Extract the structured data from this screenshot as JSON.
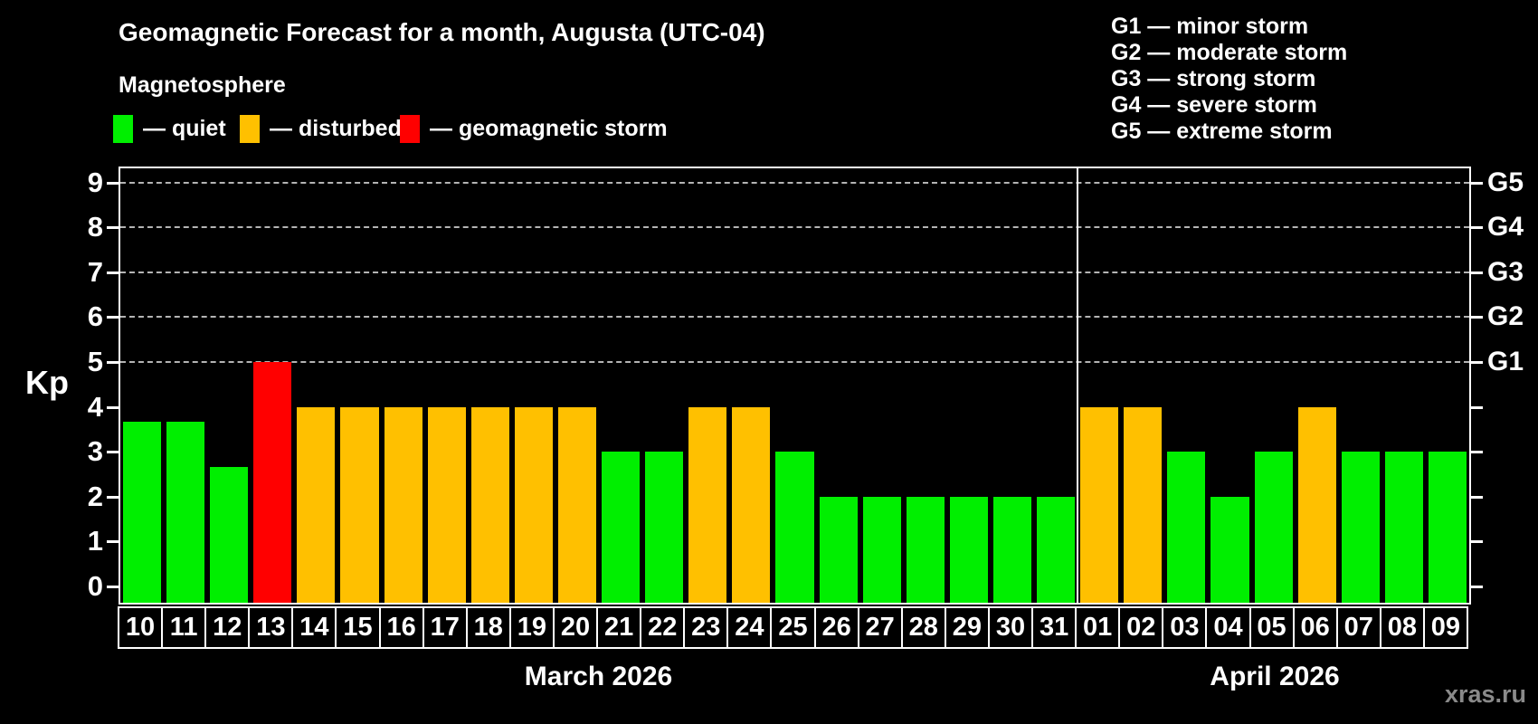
{
  "title": "Geomagnetic Forecast for a month, Augusta (UTC-04)",
  "subtitle": "Magnetosphere",
  "legend": {
    "quiet": "— quiet",
    "disturbed": "— disturbed",
    "storm": "— geomagnetic storm"
  },
  "storm_scale": [
    "G1 — minor storm",
    "G2 — moderate storm",
    "G3 — strong storm",
    "G4 — severe storm",
    "G5 — extreme storm"
  ],
  "watermark": "xras.ru",
  "colors": {
    "quiet": "#00ef00",
    "disturbed": "#ffc000",
    "storm": "#ff0000",
    "grid": "#b4b4b4",
    "frame": "#ffffff",
    "background": "#000000",
    "watermark_gray": "#8a8a8a"
  },
  "chart_data": {
    "type": "bar",
    "title": "Geomagnetic Forecast for a month, Augusta (UTC-04)",
    "ylabel": "Kp",
    "ylim": [
      0,
      9
    ],
    "y_ticks": [
      0,
      1,
      2,
      3,
      4,
      5,
      6,
      7,
      8,
      9
    ],
    "dashed_gridlines_at": [
      5,
      6,
      7,
      8,
      9
    ],
    "grid": true,
    "right_axis": [
      {
        "kp": 5,
        "label": "G1"
      },
      {
        "kp": 6,
        "label": "G2"
      },
      {
        "kp": 7,
        "label": "G3"
      },
      {
        "kp": 8,
        "label": "G4"
      },
      {
        "kp": 9,
        "label": "G5"
      }
    ],
    "months": [
      {
        "caption": "March 2026",
        "days": [
          "10",
          "11",
          "12",
          "13",
          "14",
          "15",
          "16",
          "17",
          "18",
          "19",
          "20",
          "21",
          "22",
          "23",
          "24",
          "25",
          "26",
          "27",
          "28",
          "29",
          "30",
          "31"
        ],
        "values": [
          3.67,
          3.67,
          2.67,
          5,
          4,
          4,
          4,
          4,
          4,
          4,
          4,
          3,
          3,
          4,
          4,
          3,
          2,
          2,
          2,
          2,
          2,
          2
        ],
        "states": [
          "quiet",
          "quiet",
          "quiet",
          "storm",
          "disturbed",
          "disturbed",
          "disturbed",
          "disturbed",
          "disturbed",
          "disturbed",
          "disturbed",
          "quiet",
          "quiet",
          "disturbed",
          "disturbed",
          "quiet",
          "quiet",
          "quiet",
          "quiet",
          "quiet",
          "quiet",
          "quiet"
        ]
      },
      {
        "caption": "April 2026",
        "days": [
          "01",
          "02",
          "03",
          "04",
          "05",
          "06",
          "07",
          "08",
          "09"
        ],
        "values": [
          4,
          4,
          3,
          2,
          3,
          4,
          3,
          3,
          3
        ],
        "states": [
          "disturbed",
          "disturbed",
          "quiet",
          "quiet",
          "quiet",
          "disturbed",
          "quiet",
          "quiet",
          "quiet"
        ]
      }
    ]
  }
}
